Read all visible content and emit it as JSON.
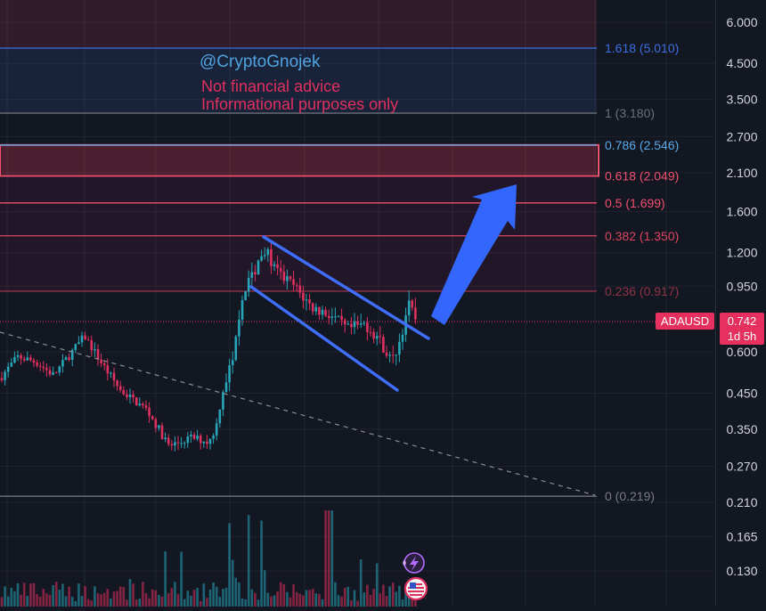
{
  "chart_data": {
    "type": "candlestick",
    "symbol": "ADAUSD",
    "scale": "log",
    "grid": true,
    "y_axis": {
      "position": "right",
      "ticks": [
        "6.000",
        "4.500",
        "3.500",
        "2.700",
        "2.100",
        "1.600",
        "1.200",
        "0.950",
        "0.600",
        "0.450",
        "0.350",
        "0.270",
        "0.210",
        "0.165",
        "0.130"
      ],
      "range": [
        0.115,
        7.0
      ]
    },
    "last_price": {
      "symbol_label": "ADAUSD",
      "value_label": "0.742",
      "value": 0.742,
      "countdown": "1d 5h"
    },
    "watermark": {
      "handle": "@CryptoGnojek",
      "line1": "Not financial advice",
      "line2": "Informational purposes only"
    },
    "fib_levels": [
      {
        "label": "1.618 (5.010)",
        "value": 5.01,
        "color": "#3a6fe0"
      },
      {
        "label": "1 (3.180)",
        "value": 3.18,
        "color": "#6b6f78"
      },
      {
        "label": "0.786 (2.546)",
        "value": 2.546,
        "color": "#5aa9e6"
      },
      {
        "label": "0.618 (2.049)",
        "value": 2.049,
        "color": "#f0506e"
      },
      {
        "label": "0.5 (1.699)",
        "value": 1.699,
        "color": "#f0506e"
      },
      {
        "label": "0.382 (1.350)",
        "value": 1.35,
        "color": "#d9465f"
      },
      {
        "label": "0.236 (0.917)",
        "value": 0.917,
        "color": "#8e3346"
      },
      {
        "label": "0 (0.219)",
        "value": 0.219,
        "color": "#787b86"
      }
    ],
    "zones": [
      {
        "from": 5.01,
        "to": 7.0,
        "color": "#3a1f2d"
      },
      {
        "from": 3.18,
        "to": 5.01,
        "color": "#1a2540"
      },
      {
        "from": 2.049,
        "to": 2.546,
        "color": "#5a2233",
        "border": "#f0506e"
      },
      {
        "from": 0.917,
        "to": 2.049,
        "color": "#25182a"
      }
    ],
    "colors": {
      "up": "#26a6b8",
      "down": "#e0305f",
      "channel": "#3f6dff",
      "arrow": "#3366ff",
      "price_tag": "#e8305e"
    }
  }
}
